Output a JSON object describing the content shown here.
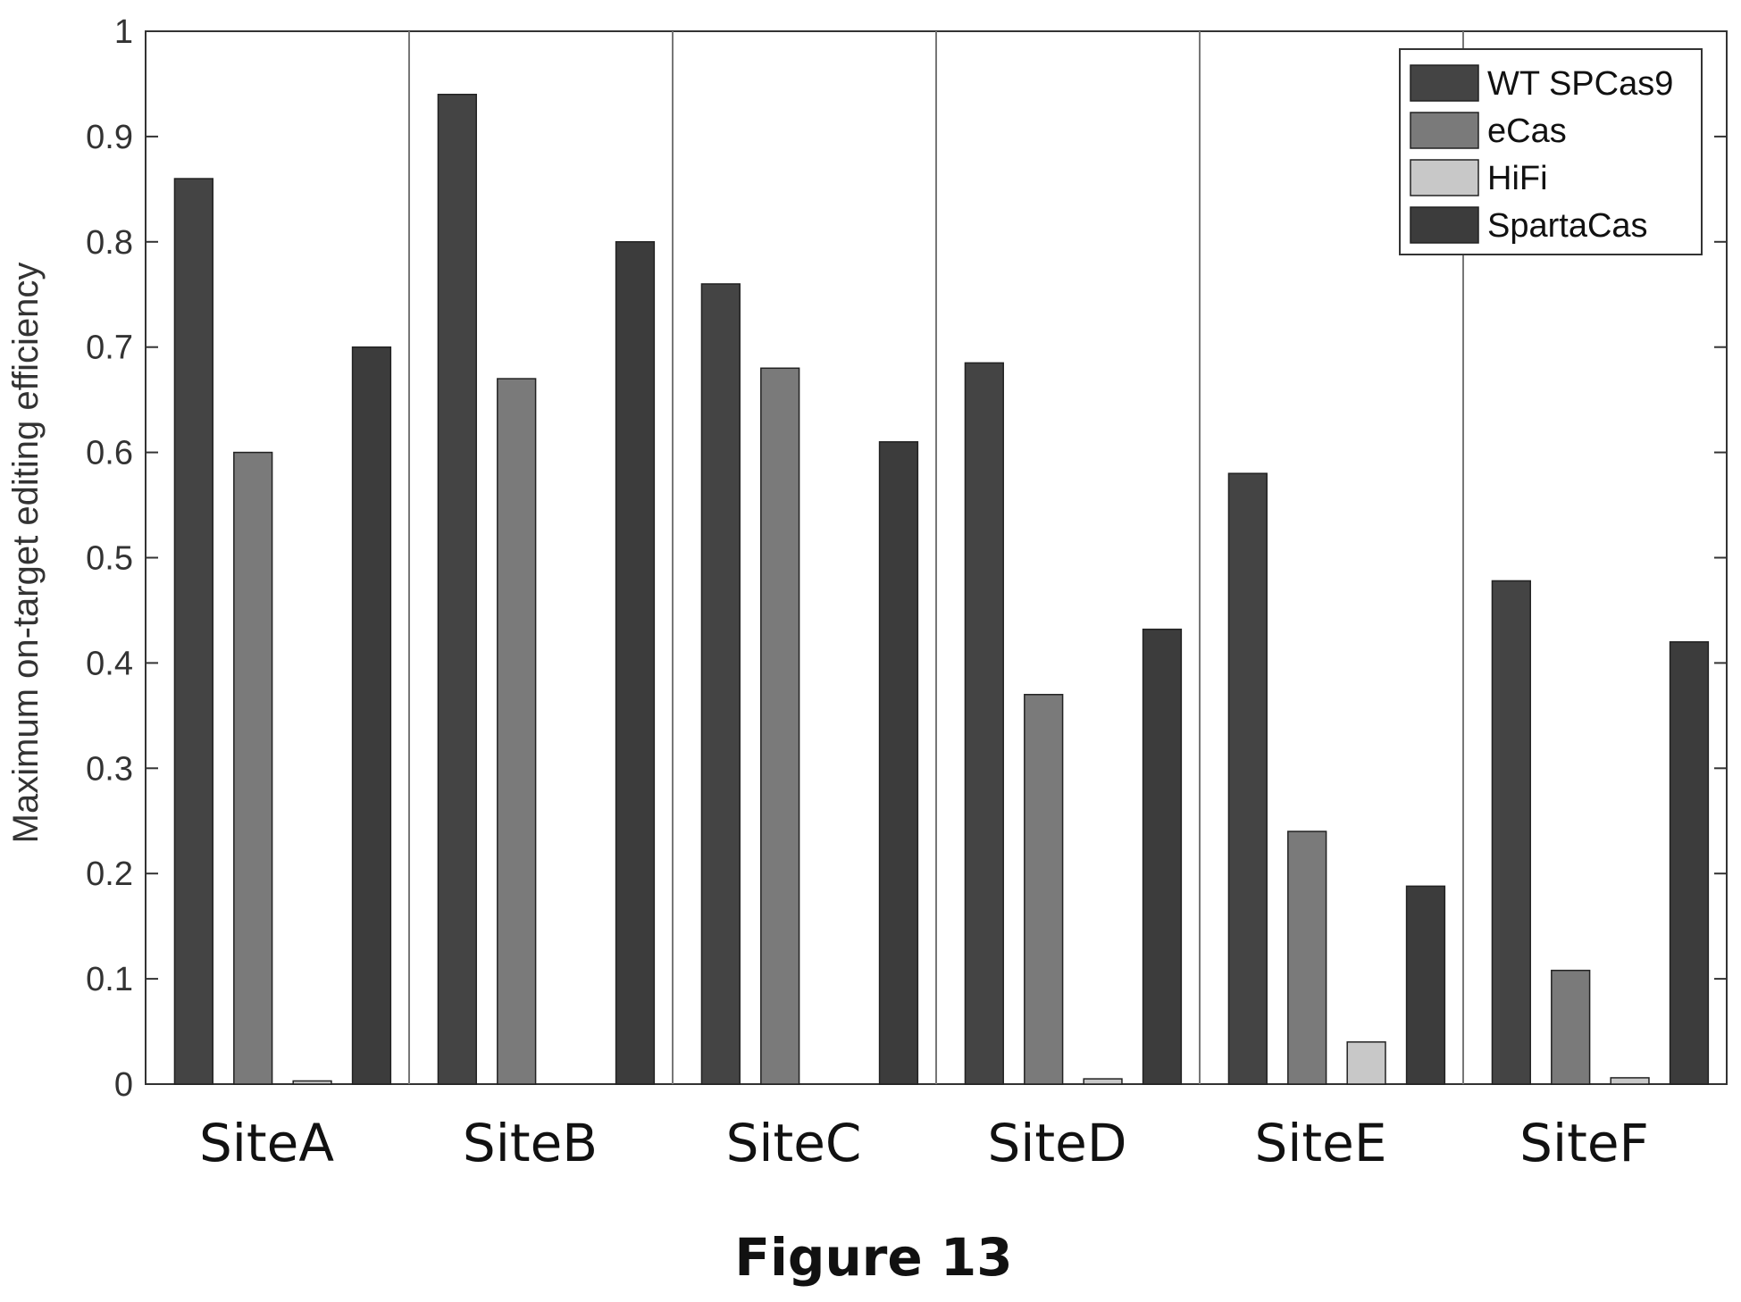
{
  "caption": "Figure 13",
  "chart_data": {
    "type": "bar",
    "title": "",
    "xlabel": "",
    "ylabel": "Maximum on-target editing efficiency",
    "ylim": [
      0,
      1
    ],
    "yticks": [
      "0",
      "0.1",
      "0.2",
      "0.3",
      "0.4",
      "0.5",
      "0.6",
      "0.7",
      "0.8",
      "0.9",
      "1"
    ],
    "categories": [
      "SiteA",
      "SiteB",
      "SiteC",
      "SiteD",
      "SiteE",
      "SiteF"
    ],
    "series": [
      {
        "name": "WT SPCas9",
        "color": "#444444",
        "values": [
          0.86,
          0.94,
          0.76,
          0.685,
          0.58,
          0.478
        ]
      },
      {
        "name": "eCas",
        "color": "#7a7a7a",
        "values": [
          0.6,
          0.67,
          0.68,
          0.37,
          0.24,
          0.108
        ]
      },
      {
        "name": "HiFi",
        "color": "#c8c8c8",
        "values": [
          0.003,
          0.0,
          0.0,
          0.005,
          0.04,
          0.006
        ]
      },
      {
        "name": "SpartaCas",
        "color": "#3c3c3c",
        "values": [
          0.7,
          0.8,
          0.61,
          0.432,
          0.188,
          0.42
        ]
      }
    ],
    "grid": false,
    "group_separators": true,
    "legend_position": "top-right"
  }
}
